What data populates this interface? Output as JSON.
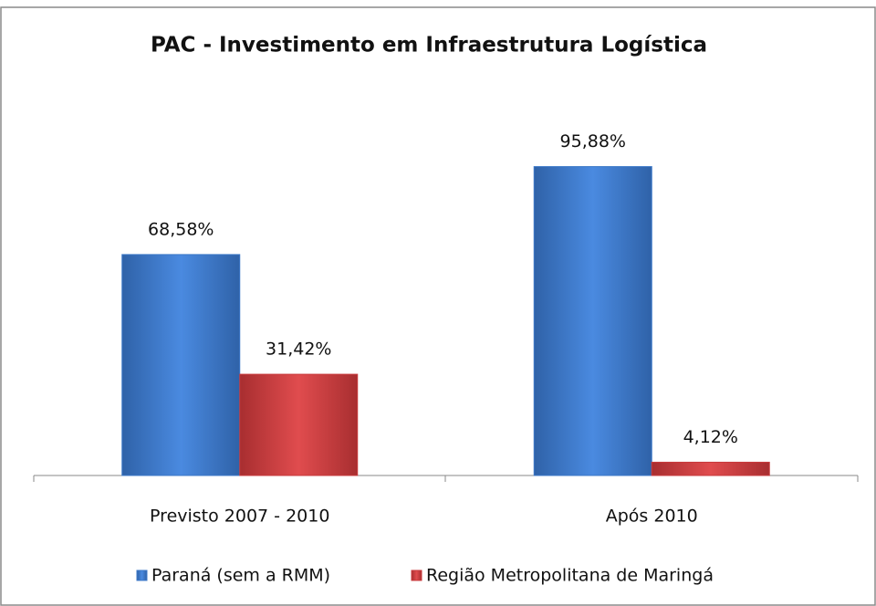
{
  "chart_data": {
    "type": "bar",
    "title": "PAC - Investimento em Infraestrutura Logística",
    "categories": [
      "Previsto 2007 - 2010",
      "Após 2010"
    ],
    "series": [
      {
        "name": "Paraná (sem a RMM)",
        "color": "#3c78c8",
        "values": [
          68.58,
          95.88
        ],
        "value_labels": [
          "68,58%",
          "95,88%"
        ]
      },
      {
        "name": "Região Metropolitana de Maringá",
        "color": "#c83a3c",
        "values": [
          31.42,
          4.12
        ],
        "value_labels": [
          "31,42%",
          "4,12%"
        ]
      }
    ],
    "ylim": [
      0,
      100
    ],
    "legend": "bottom"
  }
}
